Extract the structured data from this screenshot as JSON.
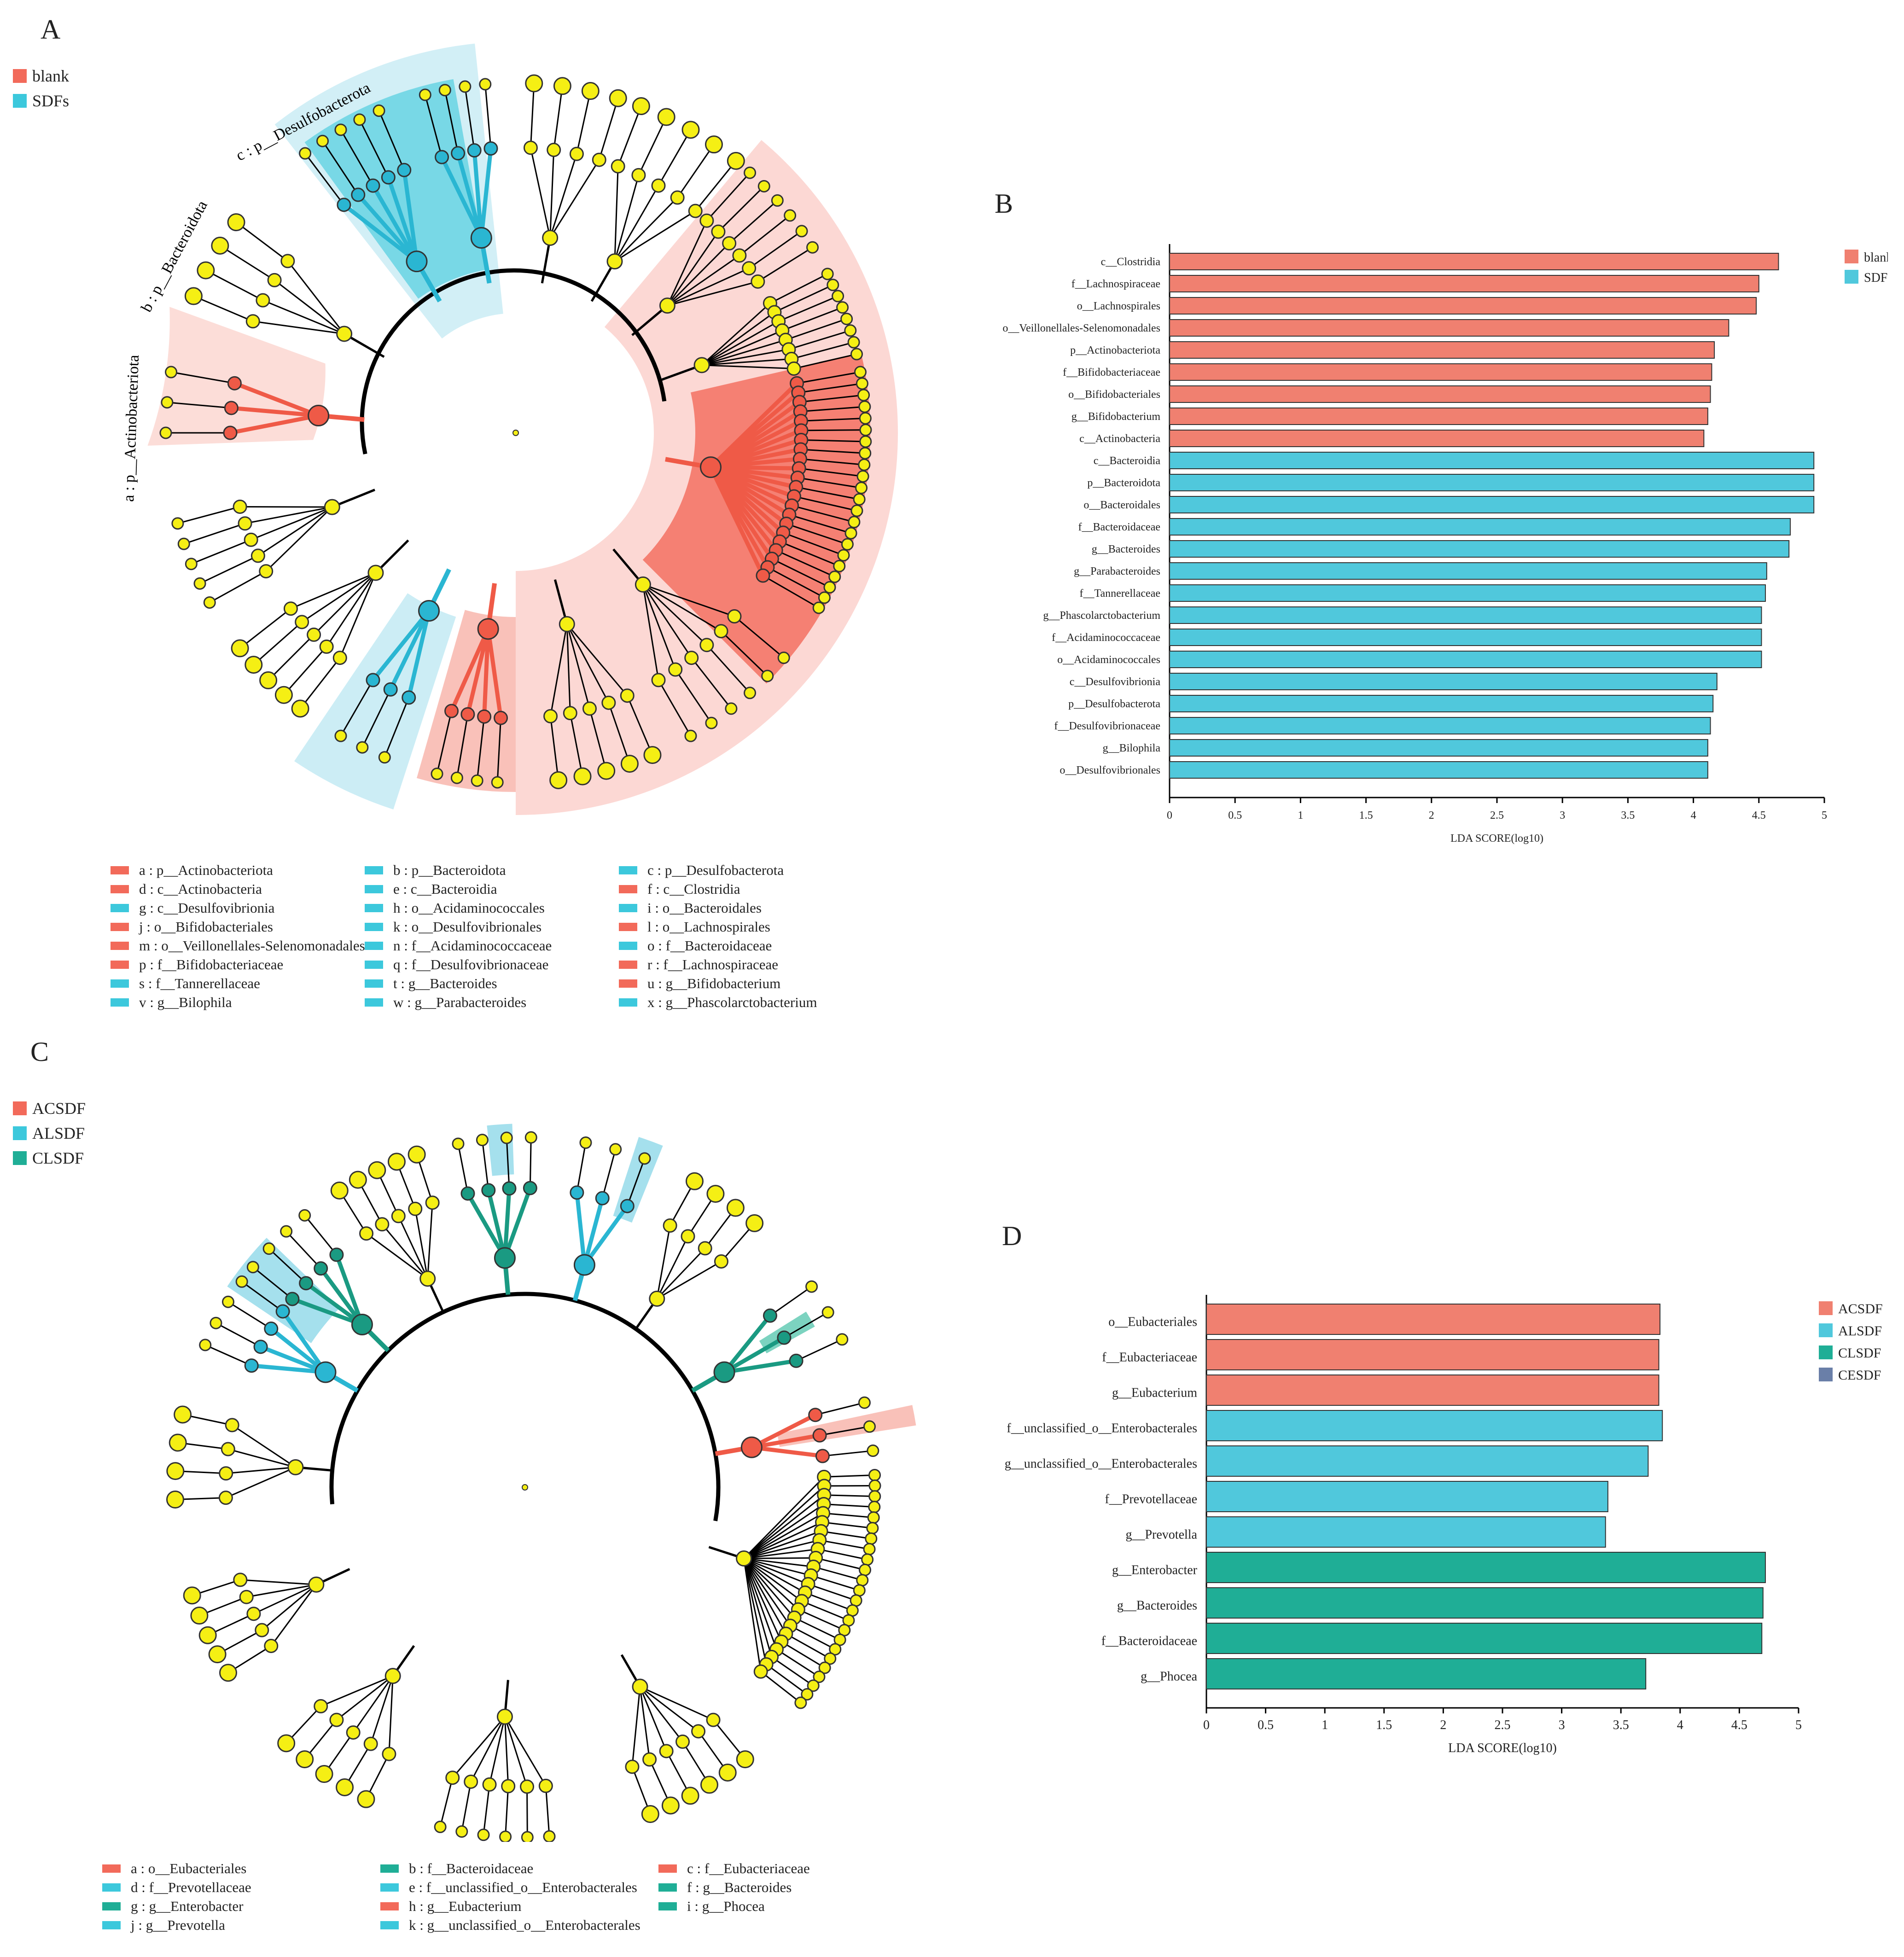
{
  "panels": {
    "A": "A",
    "B": "B",
    "C": "C",
    "D": "D"
  },
  "colors": {
    "red": "#f26a5a",
    "blue": "#3cc8dc",
    "teal": "#1fae96",
    "slate": "#6a7fa8",
    "node": "#f5ef14"
  },
  "cladogram_A": {
    "legend": [
      {
        "label": "blank",
        "color": "#f26a5a"
      },
      {
        "label": "SDFs",
        "color": "#3cc8dc"
      }
    ],
    "sector_labels": [
      {
        "text": "a : p__Actinobacteriota",
        "color": "#f26a5a"
      },
      {
        "text": "b : p__Bacteroidota",
        "color": "#3cc8dc"
      },
      {
        "text": "c : p__Desulfobacterota",
        "color": "#3cc8dc"
      }
    ],
    "key": [
      {
        "text": "a : p__Actinobacteriota",
        "color": "#f26a5a"
      },
      {
        "text": "b : p__Bacteroidota",
        "color": "#3cc8dc"
      },
      {
        "text": "c : p__Desulfobacterota",
        "color": "#3cc8dc"
      },
      {
        "text": "d : c__Actinobacteria",
        "color": "#f26a5a"
      },
      {
        "text": "e : c__Bacteroidia",
        "color": "#3cc8dc"
      },
      {
        "text": "f : c__Clostridia",
        "color": "#f26a5a"
      },
      {
        "text": "g : c__Desulfovibrionia",
        "color": "#3cc8dc"
      },
      {
        "text": "h : o__Acidaminococcales",
        "color": "#3cc8dc"
      },
      {
        "text": "i : o__Bacteroidales",
        "color": "#3cc8dc"
      },
      {
        "text": "j : o__Bifidobacteriales",
        "color": "#f26a5a"
      },
      {
        "text": "k : o__Desulfovibrionales",
        "color": "#3cc8dc"
      },
      {
        "text": "l : o__Lachnospirales",
        "color": "#f26a5a"
      },
      {
        "text": "m : o__Veillonellales-Selenomonadales",
        "color": "#f26a5a"
      },
      {
        "text": "n : f__Acidaminococcaceae",
        "color": "#3cc8dc"
      },
      {
        "text": "o : f__Bacteroidaceae",
        "color": "#3cc8dc"
      },
      {
        "text": "p : f__Bifidobacteriaceae",
        "color": "#f26a5a"
      },
      {
        "text": "q : f__Desulfovibrionaceae",
        "color": "#3cc8dc"
      },
      {
        "text": "r : f__Lachnospiraceae",
        "color": "#f26a5a"
      },
      {
        "text": "s : f__Tannerellaceae",
        "color": "#3cc8dc"
      },
      {
        "text": "t : g__Bacteroides",
        "color": "#3cc8dc"
      },
      {
        "text": "u : g__Bifidobacterium",
        "color": "#f26a5a"
      },
      {
        "text": "v : g__Bilophila",
        "color": "#3cc8dc"
      },
      {
        "text": "w : g__Parabacteroides",
        "color": "#3cc8dc"
      },
      {
        "text": "x : g__Phascolarctobacterium",
        "color": "#3cc8dc"
      }
    ]
  },
  "cladogram_C": {
    "legend": [
      {
        "label": "ACSDF",
        "color": "#f26a5a"
      },
      {
        "label": "ALSDF",
        "color": "#3cc8dc"
      },
      {
        "label": "CLSDF",
        "color": "#1fae96"
      }
    ],
    "key": [
      {
        "text": "a : o__Eubacteriales",
        "color": "#f26a5a"
      },
      {
        "text": "b : f__Bacteroidaceae",
        "color": "#1fae96"
      },
      {
        "text": "c : f__Eubacteriaceae",
        "color": "#f26a5a"
      },
      {
        "text": "d : f__Prevotellaceae",
        "color": "#3cc8dc"
      },
      {
        "text": "e : f__unclassified_o__Enterobacterales",
        "color": "#3cc8dc"
      },
      {
        "text": "f : g__Bacteroides",
        "color": "#1fae96"
      },
      {
        "text": "g : g__Enterobacter",
        "color": "#1fae96"
      },
      {
        "text": "h : g__Eubacterium",
        "color": "#f26a5a"
      },
      {
        "text": "i : g__Phocea",
        "color": "#1fae96"
      },
      {
        "text": "j : g__Prevotella",
        "color": "#3cc8dc"
      },
      {
        "text": "k : g__unclassified_o__Enterobacterales",
        "color": "#3cc8dc"
      }
    ]
  },
  "chart_data": [
    {
      "type": "bar",
      "orientation": "horizontal",
      "xlabel": "LDA SCORE(log10)",
      "xlim": [
        0,
        5
      ],
      "xticks": [
        "0",
        "0.5",
        "1",
        "1.5",
        "2",
        "2.5",
        "3",
        "3.5",
        "4",
        "4.5",
        "5"
      ],
      "legend": [
        {
          "label": "blank",
          "color": "#f08070"
        },
        {
          "label": "SDFs",
          "color": "#50c8dc"
        }
      ],
      "categories": [
        "c__Clostridia",
        "f__Lachnospiraceae",
        "o__Lachnospirales",
        "o__Veillonellales-Selenomonadales",
        "p__Actinobacteriota",
        "f__Bifidobacteriaceae",
        "o__Bifidobacteriales",
        "g__Bifidobacterium",
        "c__Actinobacteria",
        "c__Bacteroidia",
        "p__Bacteroidota",
        "o__Bacteroidales",
        "f__Bacteroidaceae",
        "g__Bacteroides",
        "g__Parabacteroides",
        "f__Tannerellaceae",
        "g__Phascolarctobacterium",
        "f__Acidaminococcaceae",
        "o__Acidaminococcales",
        "c__Desulfovibrionia",
        "p__Desulfobacterota",
        "f__Desulfovibrionaceae",
        "g__Bilophila",
        "o__Desulfovibrionales"
      ],
      "values": [
        4.65,
        4.5,
        4.48,
        4.27,
        4.16,
        4.14,
        4.13,
        4.11,
        4.08,
        4.92,
        4.92,
        4.92,
        4.74,
        4.73,
        4.56,
        4.55,
        4.52,
        4.52,
        4.52,
        4.18,
        4.15,
        4.13,
        4.11,
        4.11
      ],
      "groups": [
        "blank",
        "blank",
        "blank",
        "blank",
        "blank",
        "blank",
        "blank",
        "blank",
        "blank",
        "SDFs",
        "SDFs",
        "SDFs",
        "SDFs",
        "SDFs",
        "SDFs",
        "SDFs",
        "SDFs",
        "SDFs",
        "SDFs",
        "SDFs",
        "SDFs",
        "SDFs",
        "SDFs",
        "SDFs"
      ]
    },
    {
      "type": "bar",
      "orientation": "horizontal",
      "xlabel": "LDA SCORE(log10)",
      "xlim": [
        0,
        5
      ],
      "xticks": [
        "0",
        "0.5",
        "1",
        "1.5",
        "2",
        "2.5",
        "3",
        "3.5",
        "4",
        "4.5",
        "5"
      ],
      "legend": [
        {
          "label": "ACSDF",
          "color": "#f08070"
        },
        {
          "label": "ALSDF",
          "color": "#50c8dc"
        },
        {
          "label": "CLSDF",
          "color": "#1fae96"
        },
        {
          "label": "CESDF",
          "color": "#6a7fa8"
        }
      ],
      "categories": [
        "o__Eubacteriales",
        "f__Eubacteriaceae",
        "g__Eubacterium",
        "f__unclassified_o__Enterobacterales",
        "g__unclassified_o__Enterobacterales",
        "f__Prevotellaceae",
        "g__Prevotella",
        "g__Enterobacter",
        "g__Bacteroides",
        "f__Bacteroidaceae",
        "g__Phocea"
      ],
      "values": [
        3.83,
        3.82,
        3.82,
        3.85,
        3.73,
        3.39,
        3.37,
        4.72,
        4.7,
        4.69,
        3.71
      ],
      "groups": [
        "ACSDF",
        "ACSDF",
        "ACSDF",
        "ALSDF",
        "ALSDF",
        "ALSDF",
        "ALSDF",
        "CLSDF",
        "CLSDF",
        "CLSDF",
        "CLSDF"
      ]
    }
  ]
}
